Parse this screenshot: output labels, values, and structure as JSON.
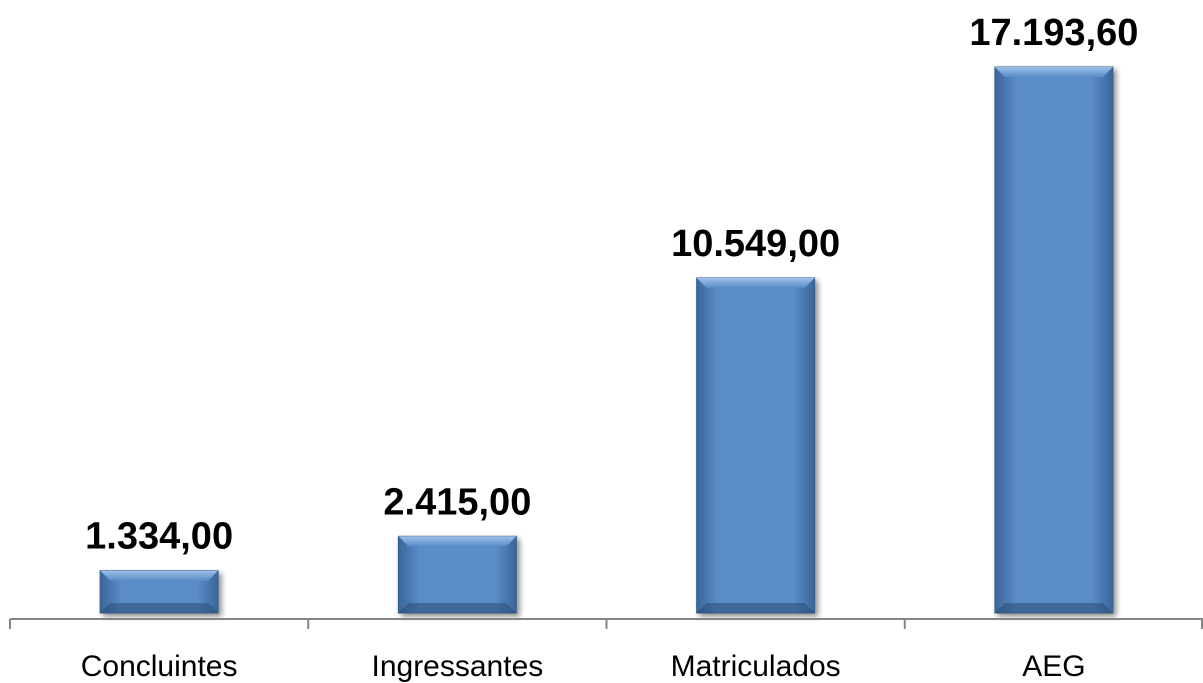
{
  "chart_data": {
    "type": "bar",
    "categories": [
      "Concluintes",
      "Ingressantes",
      "Matriculados",
      "AEG"
    ],
    "values": [
      1334.0,
      2415.0,
      10549.0,
      17193.6
    ],
    "data_labels": [
      "1.334,00",
      "2.415,00",
      "10.549,00",
      "17.193,60"
    ],
    "title": "",
    "xlabel": "",
    "ylabel": "",
    "ylim": [
      0,
      18000
    ],
    "grid": false,
    "legend": "none",
    "colors": {
      "bar_fill": "#4f81bd",
      "bar_highlight": "#8db3e2",
      "bar_shadow": "#2c4d75",
      "axis": "#868686"
    }
  }
}
